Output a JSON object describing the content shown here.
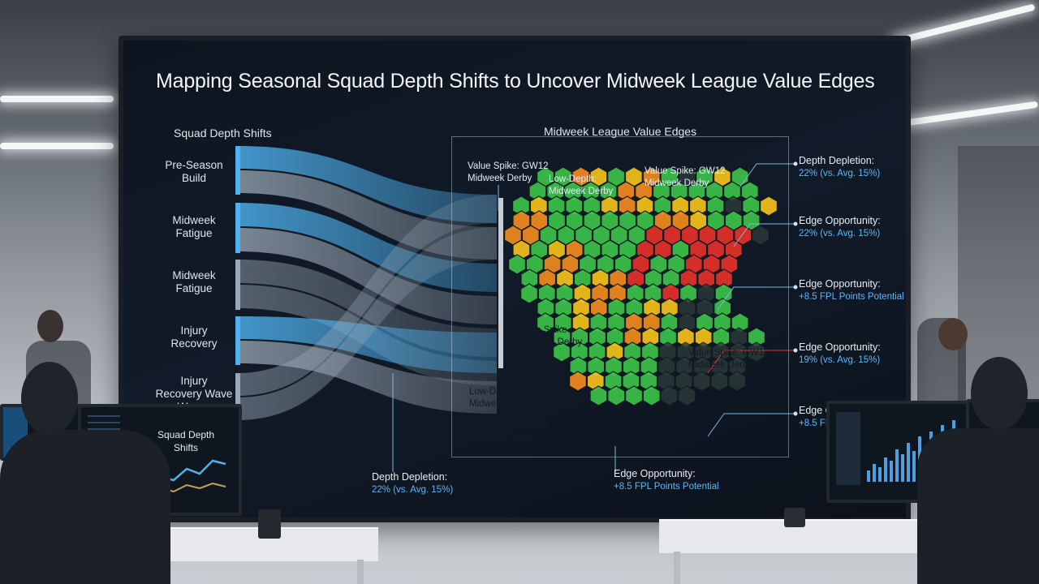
{
  "screen": {
    "title": "Mapping Seasonal Squad Depth Shifts to Uncover Midweek League Value Edges",
    "left_heading": "Squad Depth Shifts",
    "right_heading": "Midweek League Value Edges",
    "flow_labels": [
      "Pre-Season\nBuild",
      "Midweek\nFatigue",
      "Midweek\nFatigue",
      "Injury\nRecovery",
      "Injury\nRecovery Wave\nWaves"
    ],
    "inner_annotations": [
      {
        "line1": "Value Spike: GW12",
        "line2": "Midweek Derby"
      },
      {
        "line1": "Low-Depth:",
        "line2": "Midweek Derby"
      },
      {
        "line1": "Value Spike: GW12",
        "line2": "Midweek Derby"
      },
      {
        "line1": "Value Spike",
        "line2": "Midweek Derby"
      },
      {
        "line1": "Value Spike: GW12",
        "line2": "Midweek Derby"
      },
      {
        "line1": "Low-Depth:",
        "line2": "Midweek Derby"
      },
      {
        "line1": "Value Spike: GW12",
        "line2": "Midweek Derby"
      }
    ],
    "right_annotations": [
      {
        "title": "Depth Depletion:",
        "sub": "22% (vs. Avg. 15%)"
      },
      {
        "title": "Edge Opportunity:",
        "sub": "22% (vs. Avg. 15%)"
      },
      {
        "title": "Edge Opportunity:",
        "sub": "+8.5 FPL Points Potential"
      },
      {
        "title": "Edge Opportunity:",
        "sub": "19% (vs. Avg. 15%)"
      },
      {
        "title": "Edge Opportunity:",
        "sub": "+8.5 FPL Points Potential"
      }
    ],
    "bottom_annotations": [
      {
        "title": "Depth Depletion:",
        "sub": "22% (vs. Avg. 15%)"
      },
      {
        "title": "Edge Opportunity:",
        "sub": "+8.5 FPL Points Potential"
      }
    ],
    "colors": {
      "flow_blue": "#4fb3f0",
      "flow_grey": "#9aa7b4",
      "hex_green": "#3cc24a",
      "hex_yellow": "#f4c21c",
      "hex_orange": "#f08a1e",
      "hex_red": "#e5302a",
      "hex_dark": "#2b3a3a",
      "accent_text": "#59b8ff"
    }
  },
  "desk_monitor": {
    "title": "Squad Depth\nShifts"
  }
}
